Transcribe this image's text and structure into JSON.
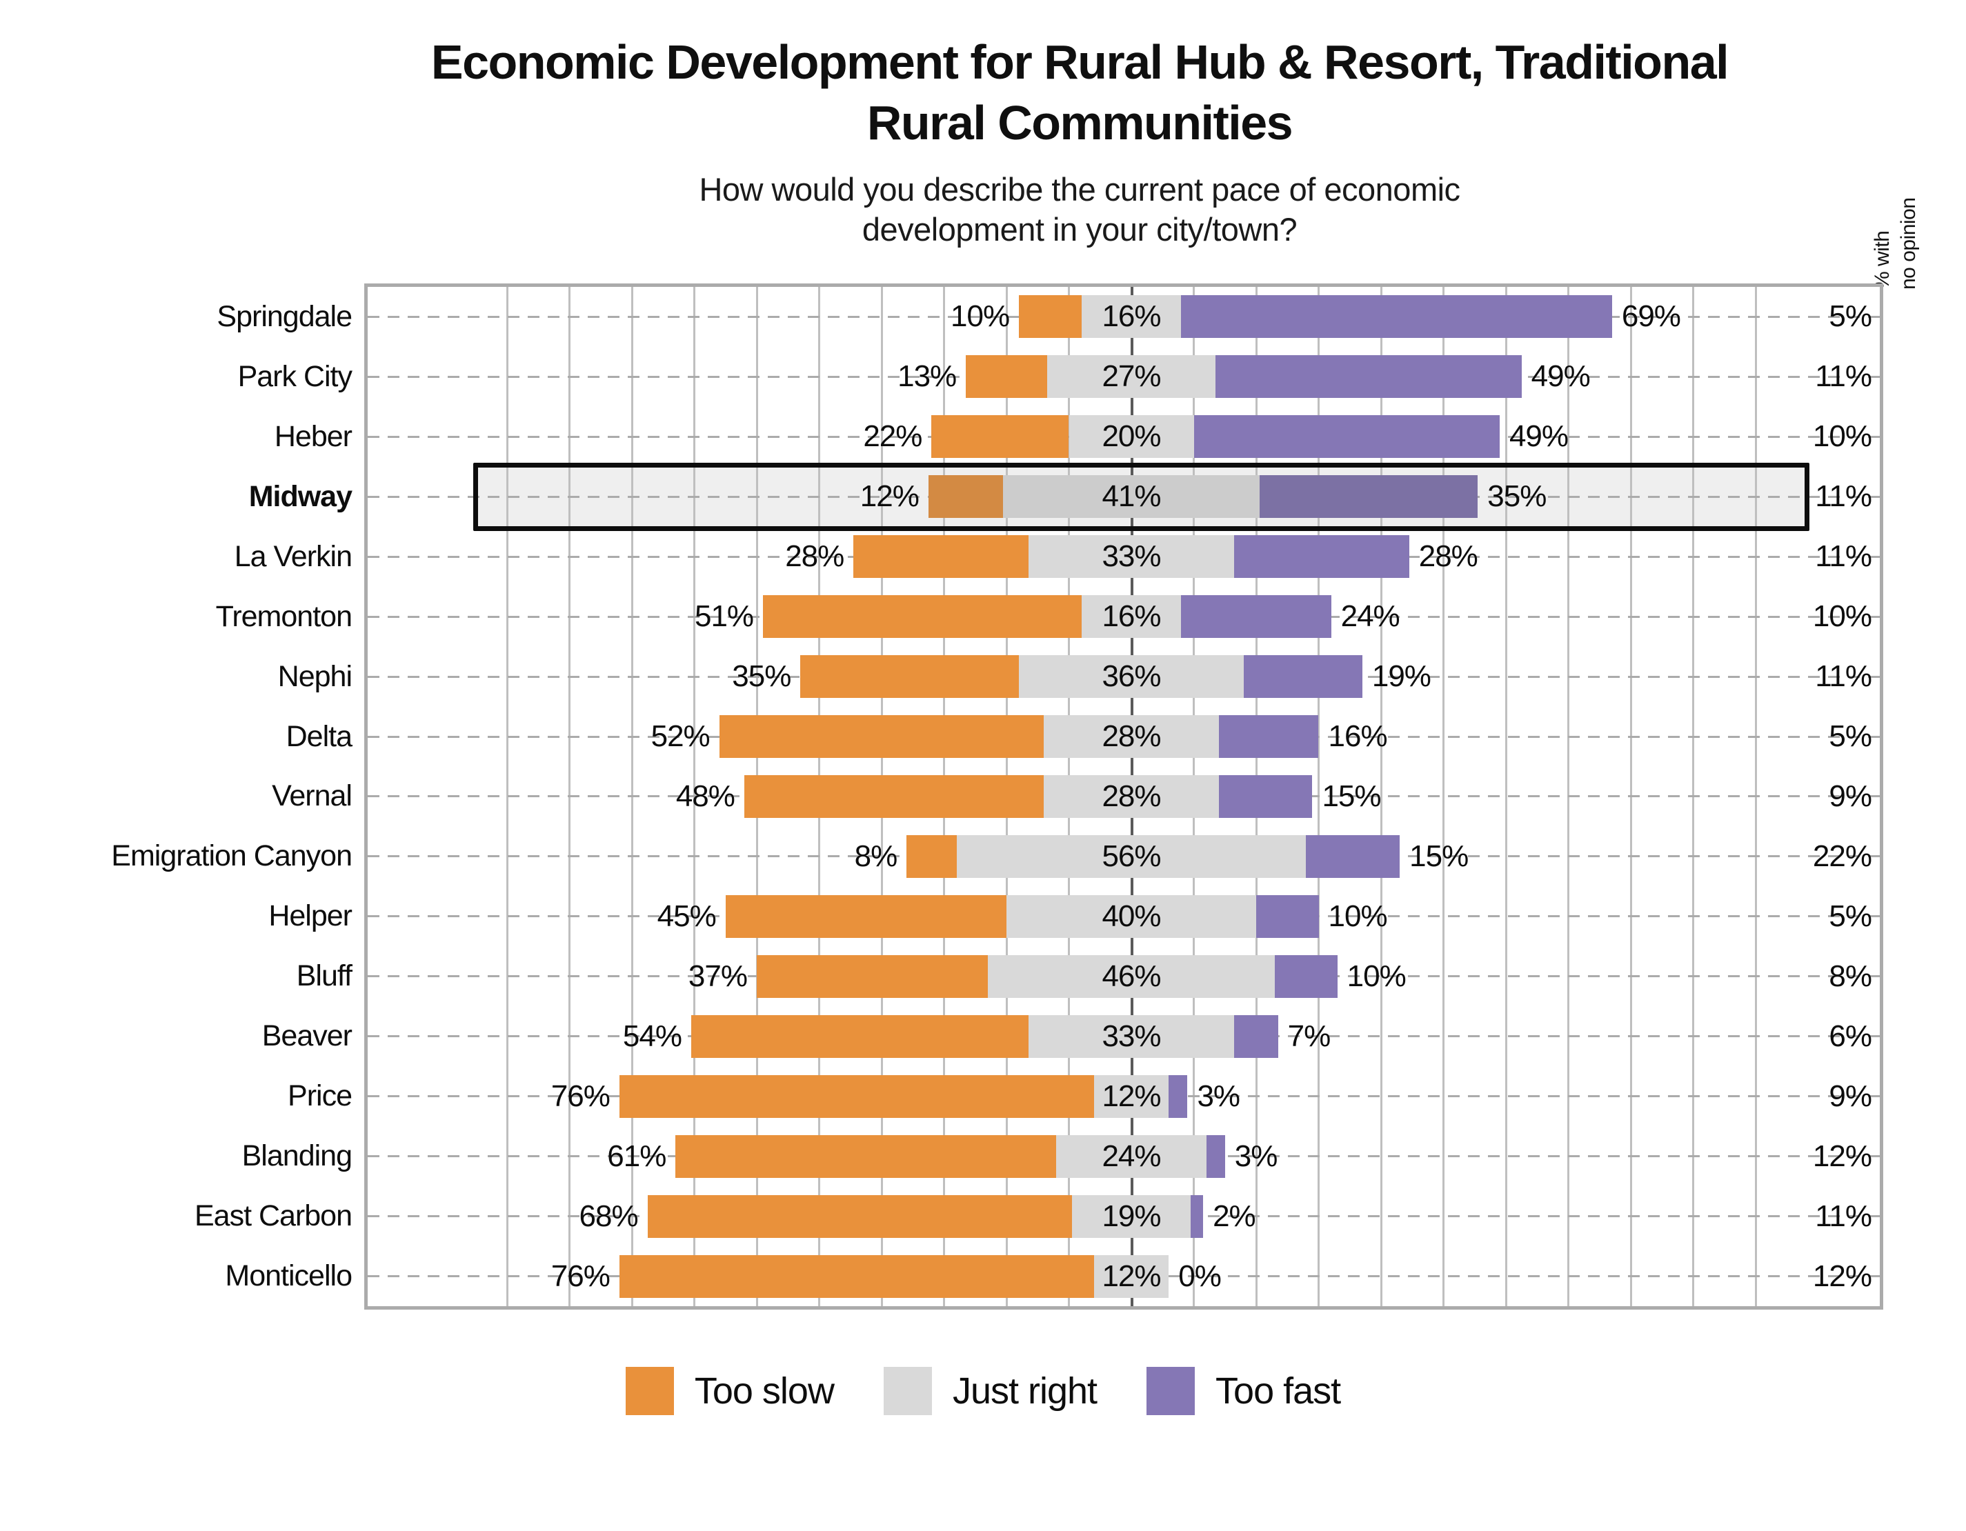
{
  "title_lines": [
    "Economic Development for Rural Hub & Resort, Traditional",
    "Rural Communities"
  ],
  "subtitle_lines": [
    "How would you describe the current pace of economic",
    "development in your city/town?"
  ],
  "right_axis_note_lines": [
    "% with",
    "no opinion"
  ],
  "colors": {
    "too_slow": "#E9913B",
    "just_right": "#D9D9D9",
    "too_fast": "#8577B5",
    "highlight_fill": "#EFEFEF",
    "highlight_border": "#0D0D0D",
    "gridline": "#BFBFBF",
    "zero_line": "#5A5A5A",
    "frame_border": "#ABABAB"
  },
  "legend": [
    {
      "label": "Too slow",
      "color": "#E9913B"
    },
    {
      "label": "Just right",
      "color": "#D9D9D9"
    },
    {
      "label": "Too fast",
      "color": "#8577B5"
    }
  ],
  "chart_data": {
    "type": "bar",
    "variant": "diverging-stacked-horizontal",
    "unit": "percent",
    "legend_position": "bottom",
    "axis": {
      "center": 0,
      "gridline_interval": 10,
      "gridline_range": [
        -100,
        100
      ],
      "grid": true
    },
    "highlighted_category": "Midway",
    "series_names": [
      "Too slow",
      "Just right",
      "Too fast",
      "% with no opinion"
    ],
    "rows": [
      {
        "city": "Springdale",
        "too_slow": 10,
        "just_right": 16,
        "too_fast": 69,
        "no_opinion": 5,
        "highlight": false
      },
      {
        "city": "Park City",
        "too_slow": 13,
        "just_right": 27,
        "too_fast": 49,
        "no_opinion": 11,
        "highlight": false
      },
      {
        "city": "Heber",
        "too_slow": 22,
        "just_right": 20,
        "too_fast": 49,
        "no_opinion": 10,
        "highlight": false
      },
      {
        "city": "Midway",
        "too_slow": 12,
        "just_right": 41,
        "too_fast": 35,
        "no_opinion": 11,
        "highlight": true
      },
      {
        "city": "La Verkin",
        "too_slow": 28,
        "just_right": 33,
        "too_fast": 28,
        "no_opinion": 11,
        "highlight": false
      },
      {
        "city": "Tremonton",
        "too_slow": 51,
        "just_right": 16,
        "too_fast": 24,
        "no_opinion": 10,
        "highlight": false
      },
      {
        "city": "Nephi",
        "too_slow": 35,
        "just_right": 36,
        "too_fast": 19,
        "no_opinion": 11,
        "highlight": false
      },
      {
        "city": "Delta",
        "too_slow": 52,
        "just_right": 28,
        "too_fast": 16,
        "no_opinion": 5,
        "highlight": false
      },
      {
        "city": "Vernal",
        "too_slow": 48,
        "just_right": 28,
        "too_fast": 15,
        "no_opinion": 9,
        "highlight": false
      },
      {
        "city": "Emigration Canyon",
        "too_slow": 8,
        "just_right": 56,
        "too_fast": 15,
        "no_opinion": 22,
        "highlight": false
      },
      {
        "city": "Helper",
        "too_slow": 45,
        "just_right": 40,
        "too_fast": 10,
        "no_opinion": 5,
        "highlight": false
      },
      {
        "city": "Bluff",
        "too_slow": 37,
        "just_right": 46,
        "too_fast": 10,
        "no_opinion": 8,
        "highlight": false
      },
      {
        "city": "Beaver",
        "too_slow": 54,
        "just_right": 33,
        "too_fast": 7,
        "no_opinion": 6,
        "highlight": false
      },
      {
        "city": "Price",
        "too_slow": 76,
        "just_right": 12,
        "too_fast": 3,
        "no_opinion": 9,
        "highlight": false
      },
      {
        "city": "Blanding",
        "too_slow": 61,
        "just_right": 24,
        "too_fast": 3,
        "no_opinion": 12,
        "highlight": false
      },
      {
        "city": "East Carbon",
        "too_slow": 68,
        "just_right": 19,
        "too_fast": 2,
        "no_opinion": 11,
        "highlight": false
      },
      {
        "city": "Monticello",
        "too_slow": 76,
        "just_right": 12,
        "too_fast": 0,
        "no_opinion": 12,
        "highlight": false
      }
    ]
  }
}
